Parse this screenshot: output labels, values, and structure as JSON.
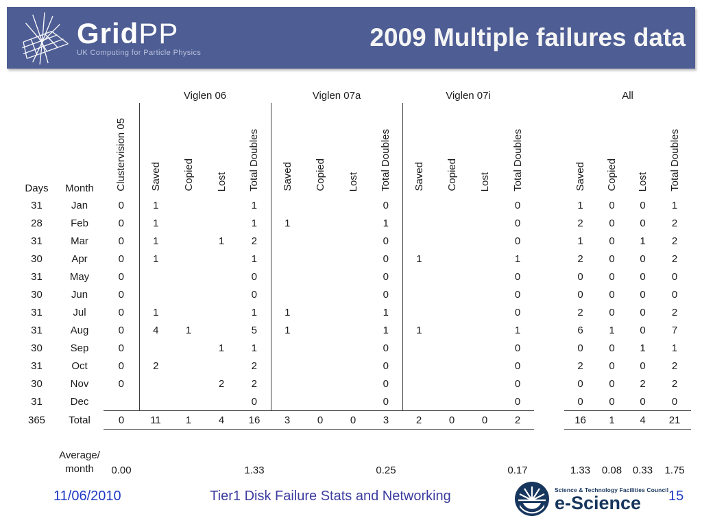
{
  "header": {
    "logo_bold": "Grid",
    "logo_light": "PP",
    "tagline": "UK Computing for Particle Physics",
    "title": "2009 Multiple failures data",
    "bar_color": "#4e5d94"
  },
  "table": {
    "days_header": "Days",
    "month_header": "Month",
    "clustervision_header": "Clustervision 05",
    "groups": [
      "Viglen 06",
      "Viglen 07a",
      "Viglen 07i",
      "All"
    ],
    "sub_headers": [
      "Saved",
      "Copied",
      "Lost",
      "Total Doubles"
    ],
    "rows": [
      {
        "days": "31",
        "month": "Jan",
        "values": [
          "0",
          "1",
          "",
          "",
          "1",
          "",
          "",
          "",
          "0",
          "",
          "",
          "",
          "0",
          "1",
          "0",
          "0",
          "1"
        ]
      },
      {
        "days": "28",
        "month": "Feb",
        "values": [
          "0",
          "1",
          "",
          "",
          "1",
          "1",
          "",
          "",
          "1",
          "",
          "",
          "",
          "0",
          "2",
          "0",
          "0",
          "2"
        ]
      },
      {
        "days": "31",
        "month": "Mar",
        "values": [
          "0",
          "1",
          "",
          "1",
          "2",
          "",
          "",
          "",
          "0",
          "",
          "",
          "",
          "0",
          "1",
          "0",
          "1",
          "2"
        ]
      },
      {
        "days": "30",
        "month": "Apr",
        "values": [
          "0",
          "1",
          "",
          "",
          "1",
          "",
          "",
          "",
          "0",
          "1",
          "",
          "",
          "1",
          "2",
          "0",
          "0",
          "2"
        ]
      },
      {
        "days": "31",
        "month": "May",
        "values": [
          "0",
          "",
          "",
          "",
          "0",
          "",
          "",
          "",
          "0",
          "",
          "",
          "",
          "0",
          "0",
          "0",
          "0",
          "0"
        ]
      },
      {
        "days": "30",
        "month": "Jun",
        "values": [
          "0",
          "",
          "",
          "",
          "0",
          "",
          "",
          "",
          "0",
          "",
          "",
          "",
          "0",
          "0",
          "0",
          "0",
          "0"
        ]
      },
      {
        "days": "31",
        "month": "Jul",
        "values": [
          "0",
          "1",
          "",
          "",
          "1",
          "1",
          "",
          "",
          "1",
          "",
          "",
          "",
          "0",
          "2",
          "0",
          "0",
          "2"
        ]
      },
      {
        "days": "31",
        "month": "Aug",
        "values": [
          "0",
          "4",
          "1",
          "",
          "5",
          "1",
          "",
          "",
          "1",
          "1",
          "",
          "",
          "1",
          "6",
          "1",
          "0",
          "7"
        ]
      },
      {
        "days": "30",
        "month": "Sep",
        "values": [
          "0",
          "",
          "",
          "1",
          "1",
          "",
          "",
          "",
          "0",
          "",
          "",
          "",
          "0",
          "0",
          "0",
          "1",
          "1"
        ]
      },
      {
        "days": "31",
        "month": "Oct",
        "values": [
          "0",
          "2",
          "",
          "",
          "2",
          "",
          "",
          "",
          "0",
          "",
          "",
          "",
          "0",
          "2",
          "0",
          "0",
          "2"
        ]
      },
      {
        "days": "30",
        "month": "Nov",
        "values": [
          "0",
          "",
          "",
          "2",
          "2",
          "",
          "",
          "",
          "0",
          "",
          "",
          "",
          "0",
          "0",
          "0",
          "2",
          "2"
        ]
      },
      {
        "days": "31",
        "month": "Dec",
        "values": [
          "",
          "",
          "",
          "",
          "0",
          "",
          "",
          "",
          "0",
          "",
          "",
          "",
          "0",
          "0",
          "0",
          "0",
          "0"
        ]
      },
      {
        "days": "365",
        "month": "Total",
        "values": [
          "0",
          "11",
          "1",
          "4",
          "16",
          "3",
          "0",
          "0",
          "3",
          "2",
          "0",
          "0",
          "2",
          "16",
          "1",
          "4",
          "21"
        ]
      }
    ],
    "average": {
      "label_line1": "Average/",
      "label_line2": "month",
      "values": [
        "0.00",
        "",
        "",
        "",
        "1.33",
        "",
        "",
        "",
        "0.25",
        "",
        "",
        "",
        "0.17",
        "1.33",
        "0.08",
        "0.33",
        "1.75"
      ]
    }
  },
  "footer": {
    "date": "11/06/2010",
    "title": "Tier1 Disk Failure Stats and Networking",
    "page": "15",
    "escience_line1": "Science & Technology Facilities Council",
    "escience_line2": "e-Science"
  }
}
